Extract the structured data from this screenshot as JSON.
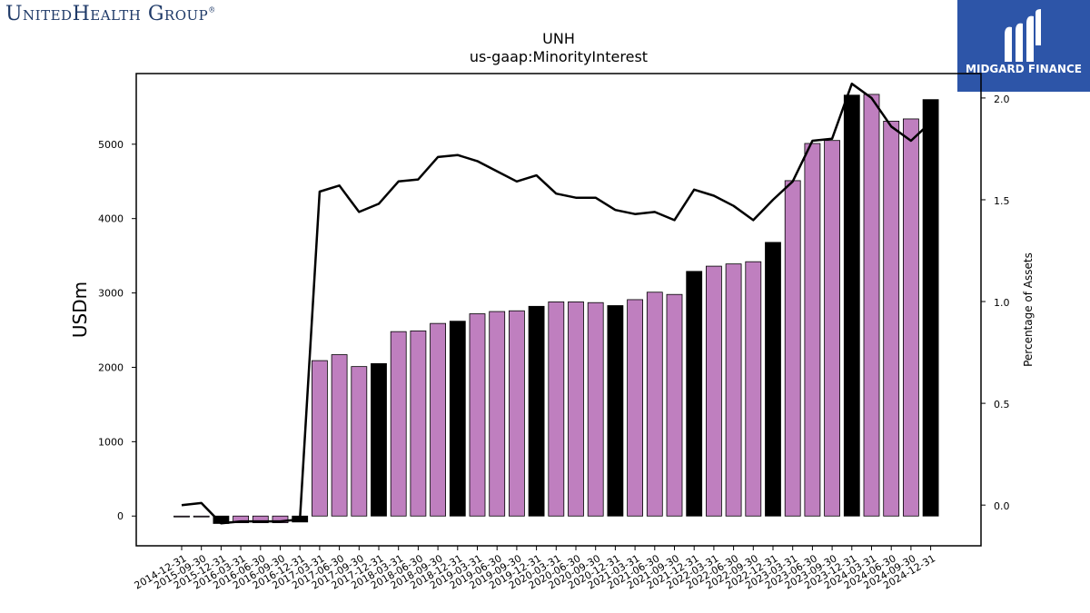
{
  "header": {
    "company_logo_text": "UnitedHealth Group",
    "brand_logo_text": "MIDGARD FINANCE"
  },
  "colors": {
    "bar_fill": "#bf7fbf",
    "bar_highlight": "#000000",
    "line": "#000000",
    "brand_blue": "#2d55a8",
    "company_navy": "#1f3a68"
  },
  "chart_data": {
    "type": "bar",
    "title": "UNH",
    "subtitle": "us-gaap:MinorityInterest",
    "ylabel": "USDm",
    "ylabel_right": "Percentage of Assets",
    "ylim": [
      -400,
      5950
    ],
    "ylim_right": [
      -0.2,
      2.12
    ],
    "yticks": [
      0,
      1000,
      2000,
      3000,
      4000,
      5000
    ],
    "yticks_right": [
      0.0,
      0.5,
      1.0,
      1.5,
      2.0
    ],
    "categories": [
      "2014-12-31",
      "2015-09-30",
      "2015-12-31",
      "2016-03-31",
      "2016-06-30",
      "2016-09-30",
      "2016-12-31",
      "2017-03-31",
      "2017-06-30",
      "2017-09-30",
      "2017-12-31",
      "2018-03-31",
      "2018-06-30",
      "2018-09-30",
      "2018-12-31",
      "2019-03-31",
      "2019-06-30",
      "2019-09-30",
      "2019-12-31",
      "2020-03-31",
      "2020-06-30",
      "2020-09-30",
      "2020-12-31",
      "2021-03-31",
      "2021-06-30",
      "2021-09-30",
      "2021-12-31",
      "2022-03-31",
      "2022-06-30",
      "2022-09-30",
      "2022-12-31",
      "2023-03-31",
      "2023-06-30",
      "2023-09-30",
      "2023-12-31",
      "2024-03-31",
      "2024-06-30",
      "2024-09-30",
      "2024-12-31"
    ],
    "series": [
      {
        "type": "bar",
        "values": [
          0,
          0,
          -100,
          -90,
          -90,
          -90,
          -80,
          2090,
          2170,
          2010,
          2050,
          2480,
          2490,
          2590,
          2620,
          2720,
          2750,
          2760,
          2820,
          2880,
          2880,
          2870,
          2830,
          2910,
          3010,
          2980,
          3290,
          3360,
          3390,
          3420,
          3680,
          4510,
          5010,
          5050,
          5660,
          5670,
          5310,
          5340,
          5600
        ],
        "highlight": [
          false,
          false,
          true,
          false,
          false,
          false,
          true,
          false,
          false,
          false,
          true,
          false,
          false,
          false,
          true,
          false,
          false,
          false,
          true,
          false,
          false,
          false,
          true,
          false,
          false,
          false,
          true,
          false,
          false,
          false,
          true,
          false,
          false,
          false,
          true,
          false,
          false,
          false,
          true
        ]
      },
      {
        "type": "line",
        "axis": "right",
        "values": [
          0.0,
          0.01,
          -0.09,
          -0.08,
          -0.08,
          -0.08,
          -0.07,
          1.54,
          1.57,
          1.44,
          1.48,
          1.59,
          1.6,
          1.71,
          1.72,
          1.69,
          1.64,
          1.59,
          1.62,
          1.53,
          1.51,
          1.51,
          1.45,
          1.43,
          1.44,
          1.4,
          1.55,
          1.52,
          1.47,
          1.4,
          1.5,
          1.59,
          1.79,
          1.8,
          2.07,
          2.0,
          1.86,
          1.79,
          1.88
        ]
      }
    ],
    "grid": false,
    "legend": "none"
  }
}
